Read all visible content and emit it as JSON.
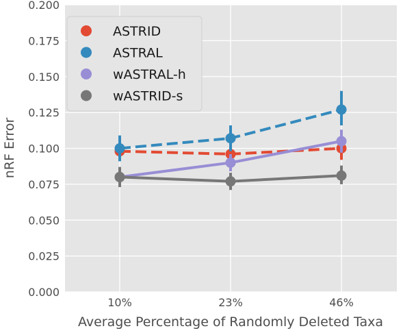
{
  "chart_data": {
    "type": "line",
    "title": "",
    "xlabel": "Average Percentage of Randomly Deleted Taxa",
    "ylabel": "nRF Error",
    "categories": [
      "10%",
      "23%",
      "46%"
    ],
    "ylim": [
      0.0,
      0.2
    ],
    "yticks": [
      "0.000",
      "0.025",
      "0.050",
      "0.075",
      "0.100",
      "0.125",
      "0.150",
      "0.175",
      "0.200"
    ],
    "grid": true,
    "legend_position": "top-left",
    "series": [
      {
        "name": "ASTRID",
        "color": "#e24a33",
        "dashed": true,
        "values": [
          0.098,
          0.096,
          0.1
        ],
        "err_low": [
          0.092,
          0.091,
          0.092
        ],
        "err_high": [
          0.104,
          0.101,
          0.107
        ]
      },
      {
        "name": "ASTRAL",
        "color": "#348abd",
        "dashed": true,
        "values": [
          0.1,
          0.107,
          0.127
        ],
        "err_low": [
          0.091,
          0.098,
          0.116
        ],
        "err_high": [
          0.109,
          0.116,
          0.14
        ]
      },
      {
        "name": "wASTRAL-h",
        "color": "#988ed5",
        "dashed": false,
        "values": [
          0.08,
          0.09,
          0.105
        ],
        "err_low": [
          0.074,
          0.084,
          0.097
        ],
        "err_high": [
          0.087,
          0.096,
          0.113
        ]
      },
      {
        "name": "wASTRID-s",
        "color": "#777777",
        "dashed": false,
        "values": [
          0.08,
          0.077,
          0.081
        ],
        "err_low": [
          0.073,
          0.071,
          0.075
        ],
        "err_high": [
          0.087,
          0.083,
          0.088
        ]
      }
    ]
  }
}
